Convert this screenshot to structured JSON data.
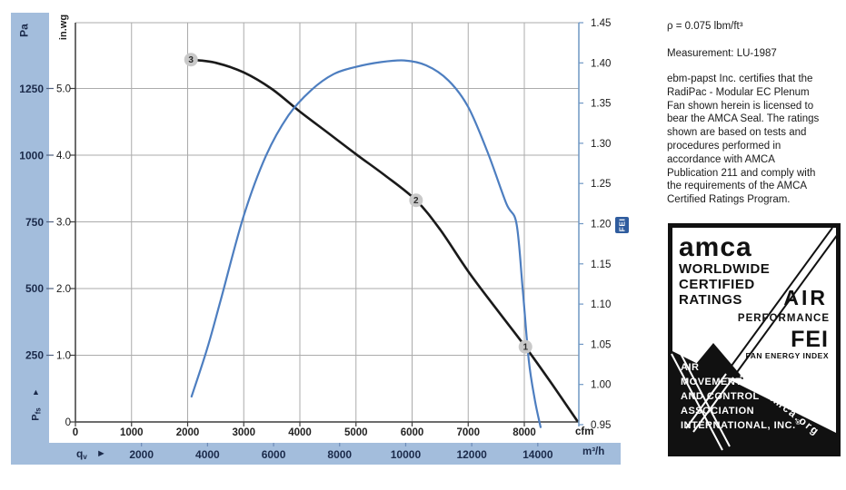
{
  "chart": {
    "labels": {
      "pa": "Pa",
      "inwg": "in.wg",
      "cfm": "cfm",
      "m3h": "m³/h",
      "fei": "FEI",
      "qv_main": "q",
      "qv_sub": "v",
      "qv_arrow": "►",
      "pfs_main": "P",
      "pfs_sub": "fs",
      "pfs_arrow": "▲"
    },
    "colors": {
      "band": "#a3bddc",
      "fan_curve": "#1a1a1a",
      "fei_curve": "#4d7ec0",
      "grid": "#ababab",
      "axis": "#3c3c3c",
      "fei_axis": "#6f97c4",
      "marker_fill": "#c9c9c9",
      "band_text": "#1b2a4a",
      "tick_text": "#1a1a1a",
      "fei_badge": "#2f5c9e"
    }
  },
  "chart_data": {
    "type": "line",
    "title": "",
    "grid": true,
    "axes": {
      "cfm": {
        "label": "cfm",
        "ticks": [
          "0",
          "1000",
          "2000",
          "3000",
          "4000",
          "5000",
          "6000",
          "7000",
          "8000"
        ],
        "range": [
          0,
          8970
        ]
      },
      "m3h": {
        "label": "m³/h",
        "ticks": [
          "2000",
          "4000",
          "6000",
          "8000",
          "10000",
          "12000",
          "14000"
        ],
        "cfm_per_m3h": 0.58858
      },
      "pa": {
        "label": "Pa",
        "ticks": [
          "1250",
          "1000",
          "750",
          "500",
          "250"
        ],
        "range": [
          0,
          1584
        ]
      },
      "inwg": {
        "label": "in.wg",
        "ticks": [
          "5.0",
          "4.0",
          "3.0",
          "2.0",
          "1.0",
          "0"
        ],
        "range": [
          0,
          6.02
        ]
      },
      "fei": {
        "label": "FEI",
        "ticks": [
          "1.45",
          "1.40",
          "1.35",
          "1.30",
          "1.25",
          "1.20",
          "1.15",
          "1.10",
          "1.05",
          "1.00",
          "0.95"
        ],
        "range": [
          0.95,
          1.45
        ]
      }
    },
    "series": [
      {
        "name": "fan-pressure-curve",
        "y_axis": "pa",
        "color": "#1a1a1a",
        "x_cfm": [
          2060,
          2500,
          3000,
          3500,
          4000,
          4500,
          5000,
          5500,
          6070,
          6500,
          7000,
          7500,
          8020,
          8500,
          8940
        ],
        "y": [
          1360,
          1348,
          1312,
          1250,
          1165,
          1085,
          1005,
          928,
          832,
          722,
          565,
          425,
          282,
          140,
          5
        ]
      },
      {
        "name": "fei-curve",
        "y_axis": "fei",
        "color": "#4d7ec0",
        "x_cfm": [
          2070,
          2350,
          2590,
          3000,
          3400,
          3800,
          4200,
          4600,
          5000,
          5450,
          5860,
          6250,
          6650,
          7000,
          7350,
          7680,
          7860,
          7970,
          8080,
          8190,
          8290
        ],
        "y": [
          0.985,
          1.045,
          1.105,
          1.21,
          1.285,
          1.335,
          1.366,
          1.386,
          1.395,
          1.401,
          1.403,
          1.397,
          1.378,
          1.345,
          1.288,
          1.225,
          1.2,
          1.12,
          1.03,
          0.98,
          0.947
        ]
      }
    ],
    "operating_points": [
      {
        "label": "3",
        "cfm": 2060,
        "pressure_pa": 1360
      },
      {
        "label": "2",
        "cfm": 6070,
        "pressure_pa": 832
      },
      {
        "label": "1",
        "cfm": 8020,
        "pressure_pa": 282
      }
    ]
  },
  "info": {
    "density": "ρ = 0.075 lbm/ft³",
    "measurement": "Measurement: LU-1987",
    "certification": "ebm-papst Inc. certifies that the RadiPac - Modular EC Plenum Fan shown herein is licensed to bear the AMCA Seal. The ratings shown are based on tests and procedures performed in accordance with AMCA Publication 211 and comply with the requirements of the AMCA Certified Ratings Program."
  },
  "seal": {
    "logo": "amca",
    "word1": "WORLDWIDE",
    "word2": "CERTIFIED",
    "word3": "RATINGS",
    "air": "AIR",
    "performance": "PERFORMANCE",
    "fei": "FEI",
    "fei_sub": "FAN ENERGY INDEX",
    "org1": "AIR",
    "org2": "MOVEMENT",
    "org3": "AND CONTROL",
    "org4": "ASSOCIATION",
    "org5": "INTERNATIONAL, INC.",
    "reg": "®",
    "url": "www.amca.org"
  }
}
